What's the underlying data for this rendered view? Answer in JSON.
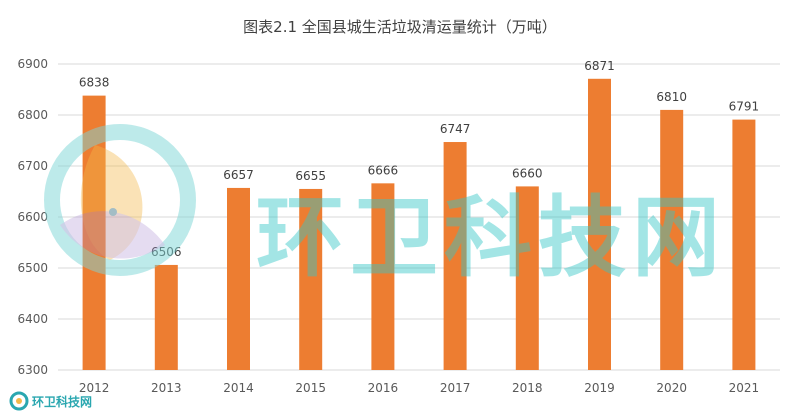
{
  "chart_data": {
    "type": "bar",
    "title": "图表2.1  全国县城生活垃圾清运量统计（万吨）",
    "categories": [
      "2012",
      "2013",
      "2014",
      "2015",
      "2016",
      "2017",
      "2018",
      "2019",
      "2020",
      "2021"
    ],
    "values": [
      6838,
      6506,
      6657,
      6655,
      6666,
      6747,
      6660,
      6871,
      6810,
      6791
    ],
    "ylim": [
      6300,
      6900
    ],
    "yticks": [
      6300,
      6400,
      6500,
      6600,
      6700,
      6800,
      6900
    ],
    "grid": true,
    "bar_color": "#ed7d31",
    "xlabel": "",
    "ylabel": ""
  },
  "watermark": {
    "text": "环卫科技网",
    "small_text": "环卫科技网",
    "color": "#34c6c7"
  }
}
